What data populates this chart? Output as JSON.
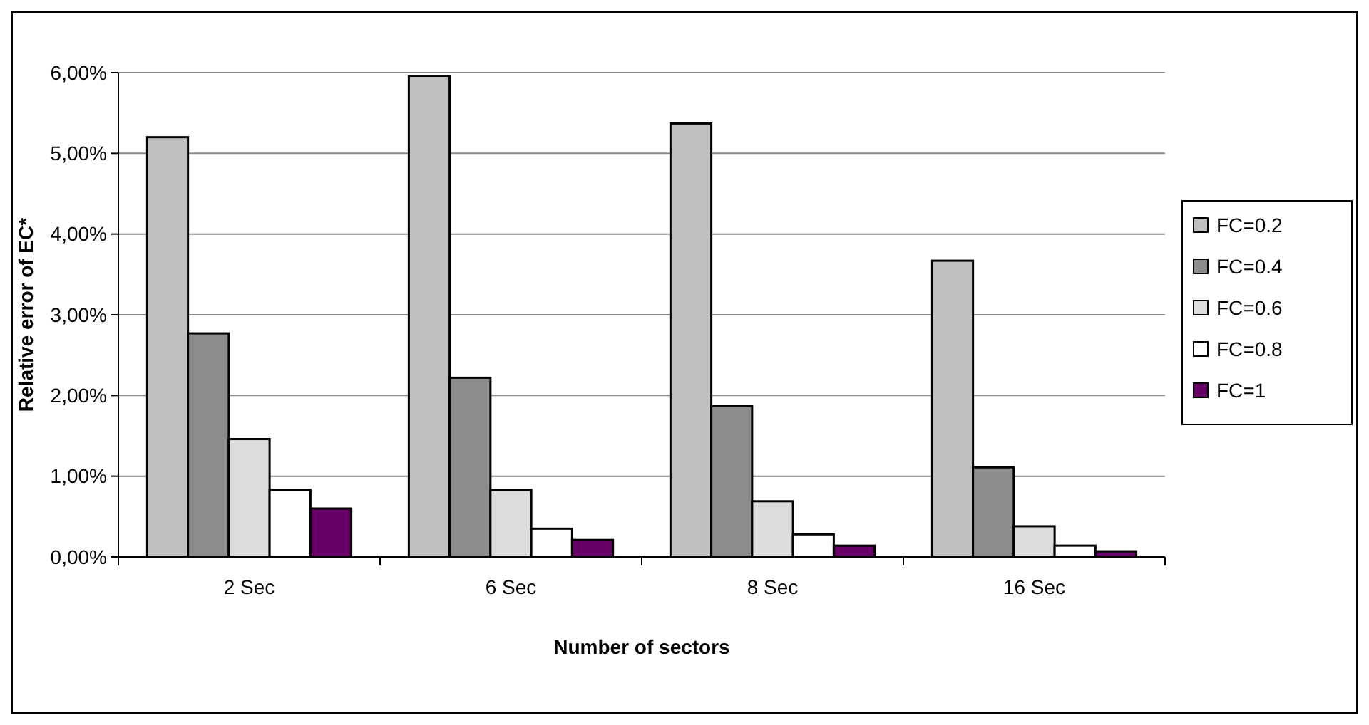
{
  "chart_data": {
    "type": "bar",
    "xlabel": "Number of sectors",
    "ylabel": "Relative error of EC*",
    "categories": [
      "2 Sec",
      "6 Sec",
      "8 Sec",
      "16 Sec"
    ],
    "series": [
      {
        "name": "FC=0.2",
        "color": "#c0c0c0",
        "values": [
          5.2,
          5.96,
          5.37,
          3.67
        ]
      },
      {
        "name": "FC=0.4",
        "color": "#8c8c8c",
        "values": [
          2.77,
          2.22,
          1.87,
          1.11
        ]
      },
      {
        "name": "FC=0.6",
        "color": "#dcdcdc",
        "values": [
          1.46,
          0.83,
          0.69,
          0.38
        ]
      },
      {
        "name": "FC=0.8",
        "color": "#ffffff",
        "values": [
          0.83,
          0.35,
          0.28,
          0.14
        ]
      },
      {
        "name": "FC=1",
        "color": "#660066",
        "values": [
          0.6,
          0.21,
          0.14,
          0.07
        ]
      }
    ],
    "ylim": [
      0,
      6
    ],
    "yticks": [
      {
        "value": 0,
        "label": "0,00%"
      },
      {
        "value": 1,
        "label": "1,00%"
      },
      {
        "value": 2,
        "label": "2,00%"
      },
      {
        "value": 3,
        "label": "3,00%"
      },
      {
        "value": 4,
        "label": "4,00%"
      },
      {
        "value": 5,
        "label": "5,00%"
      },
      {
        "value": 6,
        "label": "6,00%"
      }
    ],
    "grid": "y",
    "legend": "right"
  }
}
